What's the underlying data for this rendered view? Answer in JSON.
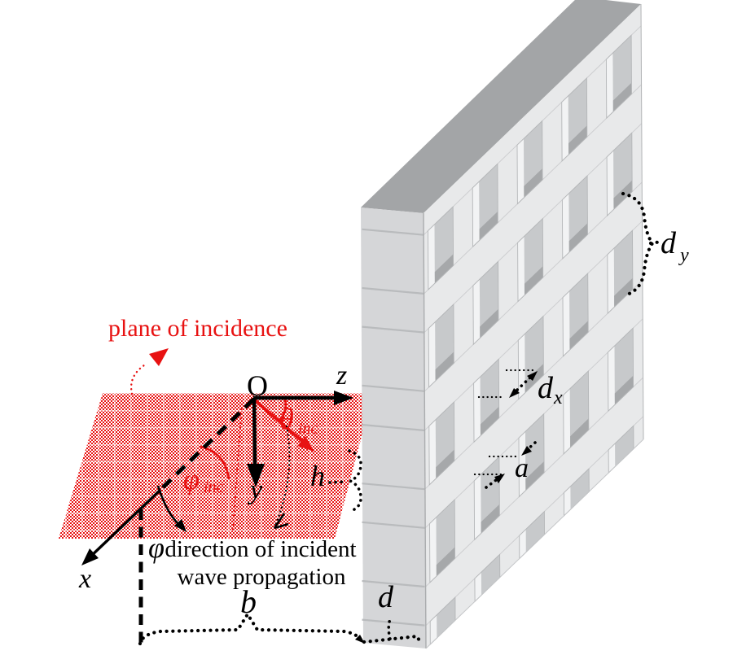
{
  "figure": {
    "plane_caption": "plane of incidence",
    "direction_caption_line1": "direction of incident",
    "direction_caption_line2": "wave propagation",
    "origin_label": "O",
    "axis_z_label": "z",
    "axis_y_label": "y",
    "axis_x_label": "x",
    "theta_inc": {
      "symbol": "θ",
      "subscript": "inc"
    },
    "phi_inc": {
      "symbol": "φ",
      "subscript": "inc"
    },
    "phi_angle_label": "φ",
    "dim_dy": {
      "symbol": "d",
      "subscript": "y"
    },
    "dim_dx": {
      "symbol": "d",
      "subscript": "x"
    },
    "dim_a_label": "a",
    "dim_h_label": "h",
    "dim_b_label": "b",
    "dim_d_label": "d",
    "colors": {
      "red": "#e81212",
      "top_face": "#a3a5a7",
      "side_face": "#d5d6d8",
      "front_face": "#e8e9ea",
      "hole_interior": "#c7c9cb",
      "hole_left_wall": "#f2f3f4",
      "hole_ledge": "#a6a8aa"
    }
  }
}
